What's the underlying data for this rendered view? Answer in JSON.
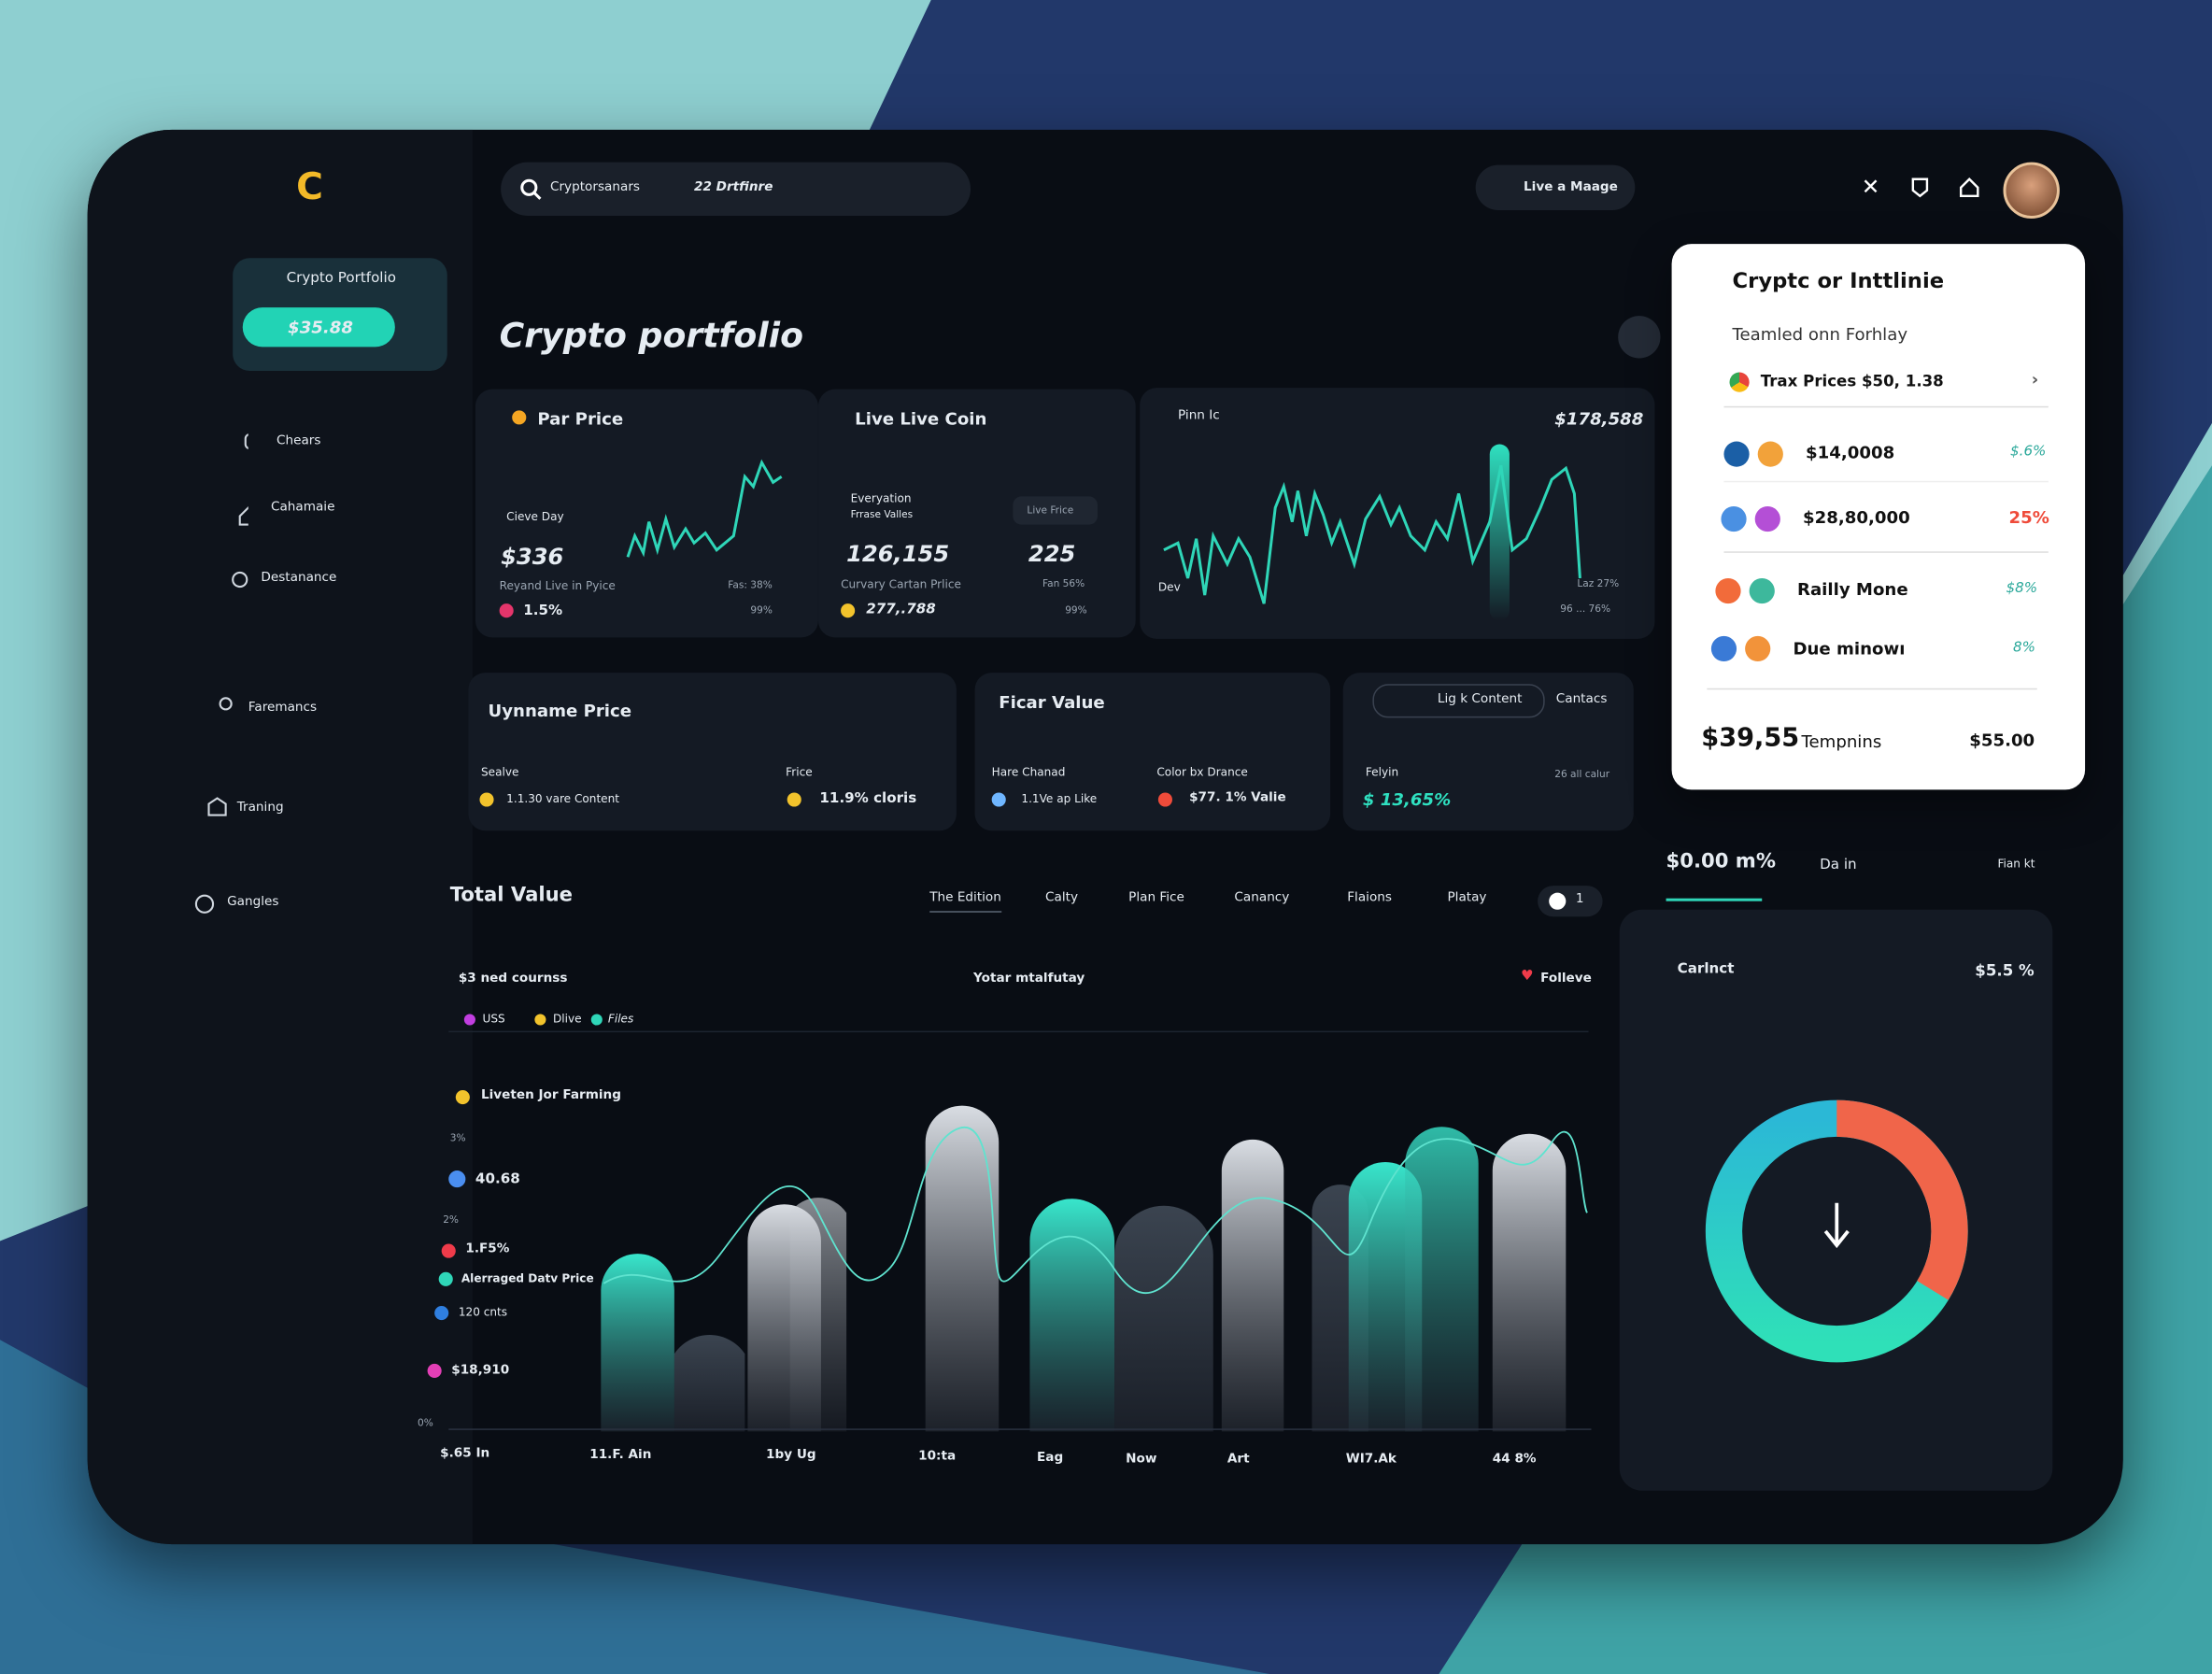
{
  "header": {
    "search": "Cryptorsanars",
    "search_filter": "22 Drtfinre",
    "action": "Live a Maage"
  },
  "sidebar": {
    "portfolio": "Crypto Portfolio",
    "balance": "$35.88",
    "nav": [
      "Chears",
      "Cahamaie",
      "Destanance",
      "Faremancs",
      "Traning",
      "Gangles"
    ]
  },
  "page_title": "Crypto portfolio",
  "cards": [
    {
      "title": "Par Price",
      "label": "Cieve Day",
      "value": "$336",
      "sub": "Reyand Live in Pyice",
      "right": "Fas: 38%",
      "change": "1.5%",
      "right2": "99%"
    },
    {
      "title": "Live Live Coin",
      "label": "Everyation",
      "label2": "Frrase Valles",
      "value": "126,155",
      "value2": "225",
      "chip": "Live Frice",
      "sub": "Curvary Cartan Prlice",
      "right": "Fan 56%",
      "change": "277,.788",
      "right2": "99%"
    },
    {
      "title": "Pinn Ic",
      "value": "$178,588",
      "left": "Dev",
      "right": "Laz 27%",
      "right2": "96 ... 76%"
    }
  ],
  "stats": [
    {
      "title": "Uynname Price",
      "items": [
        [
          "Sealve",
          "1.1.30 vare Content"
        ],
        [
          "Frice",
          "11.9% cloris"
        ]
      ]
    },
    {
      "title": "Ficar Value",
      "items": [
        [
          "Hare Chanad",
          "1.1Ve ap Like"
        ],
        [
          "Color bx Drance",
          "$77. 1% Valie"
        ]
      ]
    },
    {
      "title": "Lig k Content",
      "tab": "Cantacs",
      "items": [
        [
          "Felyin",
          "$ 13,65%"
        ]
      ],
      "note": "26 all calur"
    }
  ],
  "total": {
    "title": "Total Value",
    "tabs": [
      "The Edition",
      "Calty",
      "Plan Fice",
      "Canancy",
      "Flaions",
      "Platay"
    ],
    "toggle": "1",
    "subtitle": "$3 ned cournss",
    "center": "Yotar mtalfutay",
    "follow": "Folleve",
    "legend": [
      "USS",
      "Dlive",
      "Files"
    ],
    "farming": "Liveten Jor Farming",
    "y_labels": [
      "3%",
      "40.68",
      "2%",
      "1.F5%",
      "Alerraged Datv Price",
      "120 cnts",
      "$18,910",
      "0%"
    ],
    "x_labels": [
      "$.65 In",
      "11.F. Ain",
      "1by Ug",
      "10:ta",
      "Eag",
      "Now",
      "Art",
      "WI7.Ak",
      "44 8%"
    ]
  },
  "panel": {
    "title": "Cryptc or Inttlinie",
    "subtitle": "Teamled onn Forhlay",
    "link": "Trax Prices $50, 1.38",
    "rows": [
      [
        "$14,0008",
        "$.6%"
      ],
      [
        "$28,80,000",
        "25%"
      ],
      [
        "Railly Mone",
        "$8%"
      ],
      [
        "Due minowı",
        "8%"
      ]
    ],
    "footer": [
      "$39,55",
      "Tempnins",
      "$55.00"
    ]
  },
  "summary": {
    "value": "$0.00 m%",
    "tabs": [
      "Da in",
      "Fian kt"
    ],
    "card_title": "Carlnct",
    "card_value": "$5.5 %"
  }
}
